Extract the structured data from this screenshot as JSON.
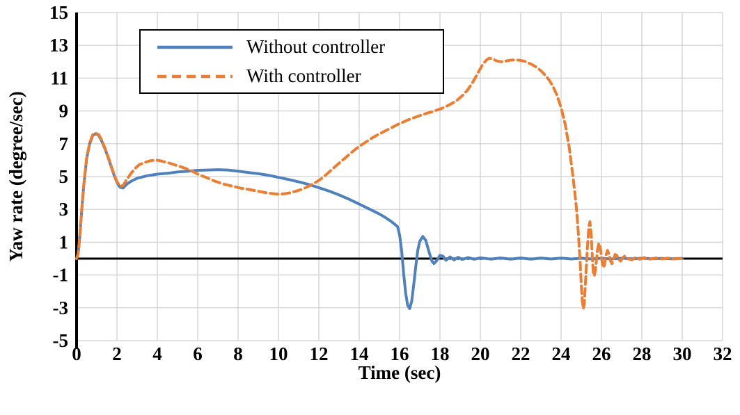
{
  "chart_data": {
    "type": "line",
    "title": "",
    "xlabel": "Time (sec)",
    "ylabel": "Yaw rate (degree/sec)",
    "xlim": [
      0,
      32
    ],
    "ylim": [
      -5,
      15
    ],
    "x_ticks": [
      0,
      2,
      4,
      6,
      8,
      10,
      12,
      14,
      16,
      18,
      20,
      22,
      24,
      26,
      28,
      30,
      32
    ],
    "y_ticks": [
      -5,
      -3,
      -1,
      1,
      3,
      5,
      7,
      9,
      11,
      13,
      15
    ],
    "grid": true,
    "grid_color": "#cfcfcf",
    "zero_line": true,
    "axis_color": "#000000",
    "legend_position": "top-left",
    "series": [
      {
        "name": "Without controller",
        "color": "#4F81BD",
        "style": "solid",
        "points": [
          [
            0,
            0
          ],
          [
            0.08,
            0.3
          ],
          [
            0.15,
            1.2
          ],
          [
            0.25,
            2.9
          ],
          [
            0.35,
            4.4
          ],
          [
            0.5,
            6.1
          ],
          [
            0.65,
            7.0
          ],
          [
            0.8,
            7.5
          ],
          [
            0.95,
            7.62
          ],
          [
            1.1,
            7.5
          ],
          [
            1.25,
            7.15
          ],
          [
            1.45,
            6.55
          ],
          [
            1.65,
            5.85
          ],
          [
            1.85,
            5.1
          ],
          [
            2.0,
            4.65
          ],
          [
            2.15,
            4.35
          ],
          [
            2.3,
            4.3
          ],
          [
            2.5,
            4.55
          ],
          [
            2.75,
            4.75
          ],
          [
            3.0,
            4.9
          ],
          [
            3.5,
            5.05
          ],
          [
            4.0,
            5.15
          ],
          [
            4.5,
            5.2
          ],
          [
            5.0,
            5.28
          ],
          [
            5.5,
            5.32
          ],
          [
            6.0,
            5.38
          ],
          [
            6.5,
            5.4
          ],
          [
            7.0,
            5.42
          ],
          [
            7.5,
            5.4
          ],
          [
            8.0,
            5.33
          ],
          [
            8.5,
            5.25
          ],
          [
            9.0,
            5.18
          ],
          [
            9.5,
            5.08
          ],
          [
            10.0,
            4.95
          ],
          [
            10.5,
            4.82
          ],
          [
            11.0,
            4.68
          ],
          [
            11.5,
            4.52
          ],
          [
            12.0,
            4.32
          ],
          [
            12.5,
            4.12
          ],
          [
            13.0,
            3.88
          ],
          [
            13.5,
            3.62
          ],
          [
            14.0,
            3.32
          ],
          [
            14.5,
            3.02
          ],
          [
            15.0,
            2.72
          ],
          [
            15.3,
            2.5
          ],
          [
            15.6,
            2.25
          ],
          [
            15.8,
            2.05
          ],
          [
            15.9,
            1.95
          ],
          [
            16.0,
            1.45
          ],
          [
            16.1,
            0.5
          ],
          [
            16.2,
            -0.9
          ],
          [
            16.3,
            -2.1
          ],
          [
            16.4,
            -2.85
          ],
          [
            16.5,
            -3.05
          ],
          [
            16.6,
            -2.6
          ],
          [
            16.7,
            -1.6
          ],
          [
            16.8,
            -0.5
          ],
          [
            16.9,
            0.5
          ],
          [
            17.0,
            1.05
          ],
          [
            17.15,
            1.35
          ],
          [
            17.3,
            1.1
          ],
          [
            17.45,
            0.45
          ],
          [
            17.6,
            -0.15
          ],
          [
            17.7,
            -0.3
          ],
          [
            17.85,
            -0.1
          ],
          [
            18.0,
            0.2
          ],
          [
            18.15,
            0.15
          ],
          [
            18.3,
            -0.1
          ],
          [
            18.5,
            0.1
          ],
          [
            18.7,
            -0.08
          ],
          [
            18.9,
            0.08
          ],
          [
            19.1,
            -0.05
          ],
          [
            19.4,
            0.06
          ],
          [
            19.7,
            -0.04
          ],
          [
            20,
            0.05
          ],
          [
            20.5,
            -0.03
          ],
          [
            21,
            0.04
          ],
          [
            21.5,
            -0.03
          ],
          [
            22,
            0.04
          ],
          [
            22.5,
            -0.03
          ],
          [
            23,
            0.03
          ],
          [
            23.5,
            -0.02
          ],
          [
            24,
            0.03
          ],
          [
            24.5,
            -0.02
          ],
          [
            25,
            0.02
          ],
          [
            25.5,
            -0.02
          ],
          [
            26,
            0.02
          ],
          [
            26.5,
            -0.02
          ],
          [
            27,
            0.02
          ],
          [
            27.5,
            -0.01
          ],
          [
            28,
            0.02
          ],
          [
            28.5,
            -0.01
          ],
          [
            29,
            0.01
          ],
          [
            29.5,
            -0.01
          ],
          [
            30,
            0.01
          ]
        ]
      },
      {
        "name": "With controller",
        "color": "#ED7D31",
        "style": "dashed",
        "points": [
          [
            0,
            0
          ],
          [
            0.08,
            0.3
          ],
          [
            0.15,
            1.2
          ],
          [
            0.25,
            2.9
          ],
          [
            0.35,
            4.45
          ],
          [
            0.5,
            6.15
          ],
          [
            0.65,
            7.05
          ],
          [
            0.8,
            7.55
          ],
          [
            0.95,
            7.65
          ],
          [
            1.1,
            7.55
          ],
          [
            1.25,
            7.2
          ],
          [
            1.45,
            6.6
          ],
          [
            1.65,
            5.9
          ],
          [
            1.85,
            5.15
          ],
          [
            2.0,
            4.7
          ],
          [
            2.15,
            4.42
          ],
          [
            2.3,
            4.45
          ],
          [
            2.5,
            4.85
          ],
          [
            2.7,
            5.2
          ],
          [
            2.9,
            5.5
          ],
          [
            3.1,
            5.72
          ],
          [
            3.35,
            5.85
          ],
          [
            3.6,
            5.95
          ],
          [
            3.85,
            6.0
          ],
          [
            4.1,
            5.98
          ],
          [
            4.35,
            5.9
          ],
          [
            4.6,
            5.82
          ],
          [
            4.85,
            5.72
          ],
          [
            5.1,
            5.62
          ],
          [
            5.35,
            5.52
          ],
          [
            5.6,
            5.4
          ],
          [
            5.85,
            5.25
          ],
          [
            6.1,
            5.1
          ],
          [
            6.35,
            4.98
          ],
          [
            6.6,
            4.85
          ],
          [
            6.85,
            4.72
          ],
          [
            7.1,
            4.62
          ],
          [
            7.35,
            4.52
          ],
          [
            7.6,
            4.45
          ],
          [
            7.85,
            4.38
          ],
          [
            8.1,
            4.3
          ],
          [
            8.35,
            4.25
          ],
          [
            8.6,
            4.2
          ],
          [
            8.85,
            4.14
          ],
          [
            9.1,
            4.08
          ],
          [
            9.35,
            4.02
          ],
          [
            9.6,
            3.98
          ],
          [
            9.85,
            3.94
          ],
          [
            10.1,
            3.93
          ],
          [
            10.35,
            3.96
          ],
          [
            10.6,
            4.02
          ],
          [
            10.85,
            4.1
          ],
          [
            11.1,
            4.2
          ],
          [
            11.35,
            4.32
          ],
          [
            11.6,
            4.48
          ],
          [
            11.85,
            4.65
          ],
          [
            12.1,
            4.85
          ],
          [
            12.35,
            5.1
          ],
          [
            12.6,
            5.38
          ],
          [
            12.85,
            5.65
          ],
          [
            13.1,
            5.92
          ],
          [
            13.35,
            6.18
          ],
          [
            13.6,
            6.45
          ],
          [
            13.85,
            6.7
          ],
          [
            14.1,
            6.92
          ],
          [
            14.35,
            7.12
          ],
          [
            14.6,
            7.32
          ],
          [
            14.85,
            7.5
          ],
          [
            15.1,
            7.66
          ],
          [
            15.35,
            7.82
          ],
          [
            15.6,
            7.98
          ],
          [
            15.85,
            8.14
          ],
          [
            16.1,
            8.28
          ],
          [
            16.35,
            8.42
          ],
          [
            16.6,
            8.54
          ],
          [
            16.85,
            8.65
          ],
          [
            17.1,
            8.76
          ],
          [
            17.35,
            8.86
          ],
          [
            17.6,
            8.95
          ],
          [
            17.85,
            9.05
          ],
          [
            18.1,
            9.16
          ],
          [
            18.35,
            9.3
          ],
          [
            18.6,
            9.46
          ],
          [
            18.85,
            9.66
          ],
          [
            19.1,
            9.92
          ],
          [
            19.35,
            10.25
          ],
          [
            19.6,
            10.7
          ],
          [
            19.85,
            11.25
          ],
          [
            20.1,
            11.8
          ],
          [
            20.3,
            12.1
          ],
          [
            20.45,
            12.22
          ],
          [
            20.6,
            12.18
          ],
          [
            20.8,
            12.05
          ],
          [
            21.0,
            12.0
          ],
          [
            21.2,
            12.02
          ],
          [
            21.4,
            12.08
          ],
          [
            21.6,
            12.1
          ],
          [
            21.8,
            12.1
          ],
          [
            22.0,
            12.08
          ],
          [
            22.2,
            12.02
          ],
          [
            22.4,
            11.92
          ],
          [
            22.6,
            11.8
          ],
          [
            22.8,
            11.65
          ],
          [
            23.0,
            11.45
          ],
          [
            23.2,
            11.2
          ],
          [
            23.4,
            10.9
          ],
          [
            23.6,
            10.5
          ],
          [
            23.8,
            9.95
          ],
          [
            24.0,
            9.2
          ],
          [
            24.2,
            8.2
          ],
          [
            24.4,
            6.8
          ],
          [
            24.6,
            4.9
          ],
          [
            24.75,
            3.2
          ],
          [
            24.85,
            1.6
          ],
          [
            24.95,
            -0.3
          ],
          [
            25.0,
            -1.6
          ],
          [
            25.05,
            -2.6
          ],
          [
            25.1,
            -3.05
          ],
          [
            25.15,
            -2.75
          ],
          [
            25.2,
            -1.6
          ],
          [
            25.3,
            0.6
          ],
          [
            25.38,
            2.0
          ],
          [
            25.43,
            2.25
          ],
          [
            25.5,
            1.3
          ],
          [
            25.55,
            0.0
          ],
          [
            25.6,
            -0.9
          ],
          [
            25.65,
            -1.05
          ],
          [
            25.72,
            -0.5
          ],
          [
            25.8,
            0.5
          ],
          [
            25.87,
            0.95
          ],
          [
            25.95,
            0.6
          ],
          [
            26.02,
            -0.1
          ],
          [
            26.08,
            -0.55
          ],
          [
            26.15,
            -0.4
          ],
          [
            26.22,
            0.2
          ],
          [
            26.3,
            0.5
          ],
          [
            26.38,
            0.25
          ],
          [
            26.45,
            -0.15
          ],
          [
            26.52,
            -0.3
          ],
          [
            26.6,
            -0.05
          ],
          [
            26.68,
            0.25
          ],
          [
            26.76,
            0.2
          ],
          [
            26.85,
            -0.05
          ],
          [
            26.95,
            -0.15
          ],
          [
            27.05,
            0.05
          ],
          [
            27.15,
            0.15
          ],
          [
            27.3,
            0.0
          ],
          [
            27.5,
            -0.08
          ],
          [
            27.7,
            0.08
          ],
          [
            27.9,
            -0.04
          ],
          [
            28.1,
            0.06
          ],
          [
            28.4,
            -0.03
          ],
          [
            28.7,
            0.04
          ],
          [
            29,
            -0.02
          ],
          [
            29.3,
            0.03
          ],
          [
            29.6,
            -0.02
          ],
          [
            30,
            0.02
          ]
        ]
      }
    ]
  }
}
